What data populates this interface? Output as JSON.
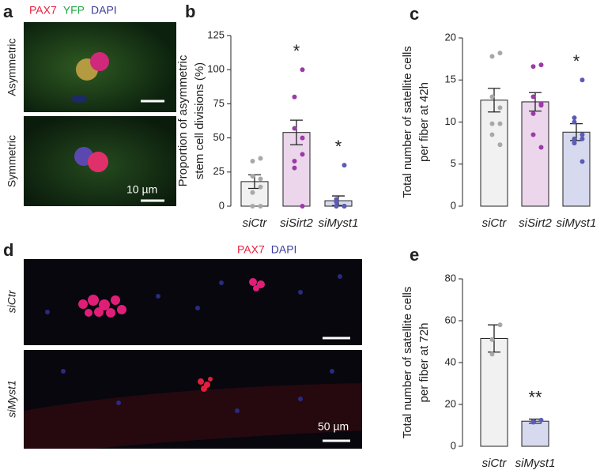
{
  "images": {
    "a": {
      "label": "a",
      "channels": [
        {
          "name": "PAX7",
          "color": "#e8203c"
        },
        {
          "name": "YFP",
          "color": "#22a844"
        },
        {
          "name": "DAPI",
          "color": "#3a3aa0"
        }
      ],
      "rows": [
        "Asymmetric",
        "Symmetric"
      ],
      "scale": "10 µm"
    },
    "d": {
      "label": "d",
      "channels": [
        {
          "name": "PAX7",
          "color": "#e8203c"
        },
        {
          "name": "DAPI",
          "color": "#3a3aa0"
        }
      ],
      "rows": [
        "siCtr",
        "siMyst1"
      ],
      "scale": "50 µm"
    }
  },
  "chart_data": [
    {
      "type": "bar",
      "panel_label": "b",
      "y_label": [
        "Proportion of asymmetric",
        "stem cell divisions (%)"
      ],
      "categories": [
        "siCtr",
        "siSirt2",
        "siMyst1"
      ],
      "values": [
        18,
        54,
        4
      ],
      "errors": [
        5,
        9,
        3.5
      ],
      "points": [
        [
          35,
          33,
          22,
          20,
          14,
          10,
          0,
          0
        ],
        [
          100,
          80,
          57,
          50,
          38,
          33,
          28,
          0
        ],
        [
          30,
          5,
          3,
          0,
          0,
          0,
          0,
          0
        ]
      ],
      "annotations": [
        null,
        "*",
        "*"
      ],
      "colors": [
        "#f1f1f1",
        "#ecd6ec",
        "#d7d9ef"
      ],
      "point_colors": [
        "#a8a8a8",
        "#9b3aa8",
        "#5b5cb5"
      ],
      "ylim": [
        0,
        125
      ],
      "yticks": [
        0,
        25,
        50,
        75,
        100,
        125
      ]
    },
    {
      "type": "bar",
      "panel_label": "c",
      "y_label": [
        "Total number of satellite cells",
        "per fiber at 42h"
      ],
      "categories": [
        "siCtr",
        "siSirt2",
        "siMyst1"
      ],
      "values": [
        12.6,
        12.4,
        8.8
      ],
      "errors": [
        1.4,
        1.1,
        1.0
      ],
      "points": [
        [
          18.2,
          17.8,
          13,
          11.7,
          9.8,
          9.8,
          8.5,
          7.3
        ],
        [
          16.8,
          16.6,
          13,
          12.2,
          12,
          11,
          8.5,
          7
        ],
        [
          15,
          10.5,
          10,
          8.5,
          8,
          8,
          7.5,
          5.3
        ]
      ],
      "annotations": [
        null,
        null,
        "*"
      ],
      "colors": [
        "#f1f1f1",
        "#ecd6ec",
        "#d7d9ef"
      ],
      "point_colors": [
        "#a8a8a8",
        "#9b3aa8",
        "#5b5cb5"
      ],
      "ylim": [
        0,
        20
      ],
      "yticks": [
        0,
        5,
        10,
        15,
        20
      ]
    },
    {
      "type": "bar",
      "panel_label": "e",
      "y_label": [
        "Total number of satellite cells",
        "per fiber at 72h"
      ],
      "categories": [
        "siCtr",
        "siMyst1"
      ],
      "values": [
        51.5,
        12
      ],
      "errors": [
        6.5,
        1
      ],
      "points": [
        [
          58,
          51,
          44
        ],
        [
          12.5,
          12,
          11.5
        ]
      ],
      "annotations": [
        null,
        "**"
      ],
      "colors": [
        "#f1f1f1",
        "#d7d9ef"
      ],
      "point_colors": [
        "#a8a8a8",
        "#5b5cb5"
      ],
      "ylim": [
        0,
        80
      ],
      "yticks": [
        0,
        20,
        40,
        60,
        80
      ]
    }
  ]
}
